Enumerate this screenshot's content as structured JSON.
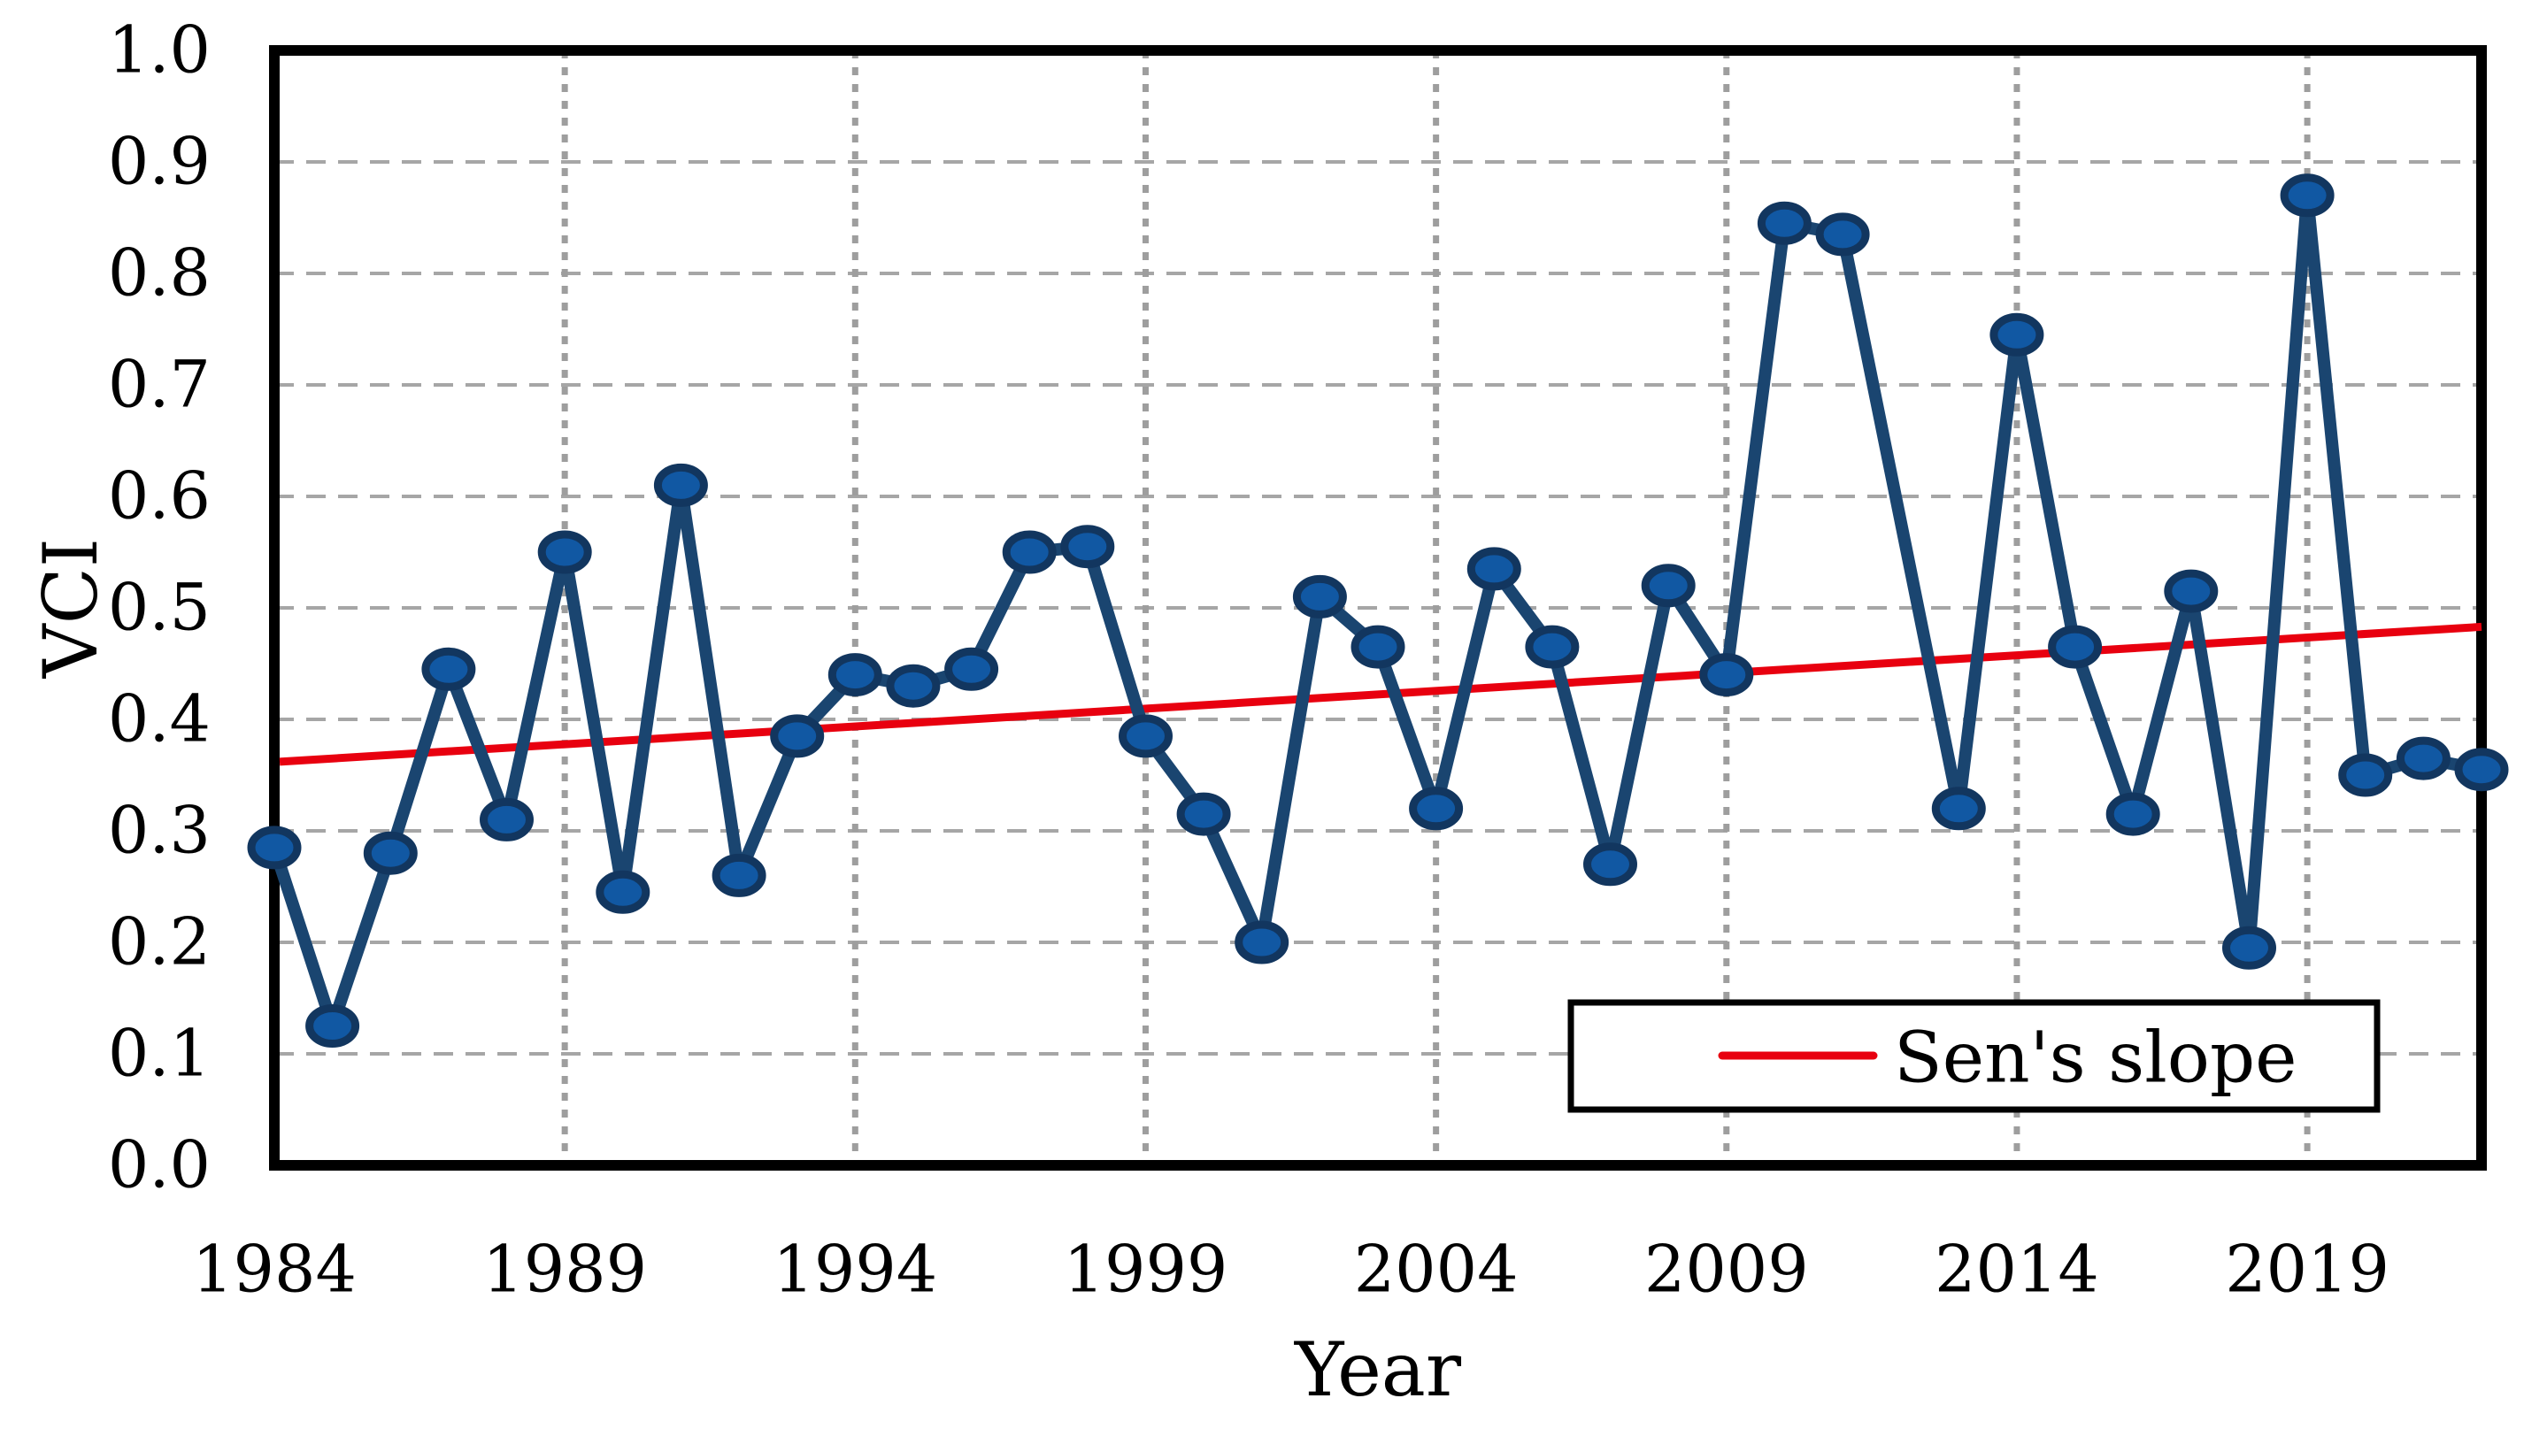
{
  "figure": {
    "background": "#ffffff",
    "description": "Annual VCI time series with Sen's slope trend line"
  },
  "chart_data": {
    "type": "line",
    "title": "",
    "xlabel": "Year",
    "ylabel": "VCI",
    "xlim": [
      1984,
      2022
    ],
    "ylim": [
      0.0,
      1.0
    ],
    "xticks": [
      1984,
      1989,
      1994,
      1999,
      2004,
      2009,
      2014,
      2019
    ],
    "ytick_step": 0.1,
    "ytick_decimals": 1,
    "grid": {
      "horizontal": "dashed",
      "vertical": "dotted",
      "h_color": "#a6a6a6",
      "v_color": "#9e9e9e"
    },
    "series": [
      {
        "name": "VCI",
        "line_color": "#1a4570",
        "marker_fill": "#1158a3",
        "marker_stroke": "#12365f",
        "years": [
          1984,
          1985,
          1986,
          1987,
          1988,
          1989,
          1990,
          1991,
          1992,
          1993,
          1994,
          1995,
          1996,
          1997,
          1998,
          1999,
          2000,
          2001,
          2002,
          2003,
          2004,
          2005,
          2006,
          2007,
          2008,
          2009,
          2010,
          2011,
          2012,
          2013,
          2014,
          2015,
          2016,
          2017,
          2018,
          2019,
          2020,
          2021,
          2022
        ],
        "values": [
          0.285,
          0.125,
          0.28,
          0.445,
          0.31,
          0.55,
          0.245,
          0.61,
          0.26,
          0.385,
          0.44,
          0.43,
          0.445,
          0.55,
          0.555,
          0.385,
          0.315,
          0.2,
          0.51,
          0.465,
          0.32,
          0.535,
          0.465,
          0.27,
          0.52,
          0.44,
          0.845,
          0.835,
          null,
          0.32,
          0.745,
          0.465,
          0.315,
          0.515,
          0.195,
          0.87,
          0.35,
          0.365,
          0.355
        ]
      }
    ],
    "trend_line": {
      "name": "Sen's slope",
      "color": "#e8000f",
      "start": {
        "x": 1984,
        "y": 0.362
      },
      "end": {
        "x": 2022,
        "y": 0.483
      }
    },
    "legend": {
      "label": "Sen's slope",
      "position": "bottom-right",
      "border_color": "#000000",
      "fill": "#ffffff",
      "sample_color": "#e8000f"
    },
    "frame_color": "#000000"
  }
}
